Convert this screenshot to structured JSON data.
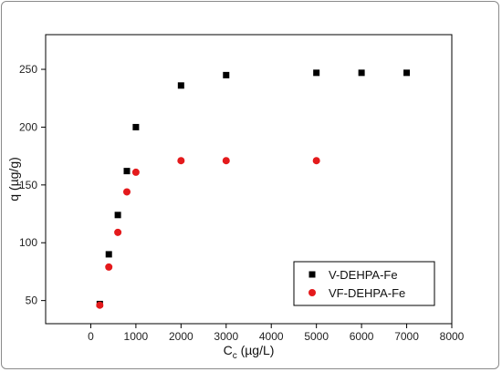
{
  "chart_data": {
    "type": "scatter",
    "title": "",
    "xlabel_main": "C",
    "xlabel_sub": "c",
    "xlabel_unit": " (µg/L)",
    "ylabel": "q (µg/g)",
    "xlim": [
      -1000,
      8000
    ],
    "ylim": [
      30,
      280
    ],
    "xticks": [
      0,
      1000,
      2000,
      3000,
      4000,
      5000,
      6000,
      7000,
      8000
    ],
    "xtick_labels": [
      "0",
      "1000",
      "2000",
      "3000",
      "4000",
      "5000",
      "6000",
      "7000",
      "8000"
    ],
    "yticks": [
      50,
      100,
      150,
      200,
      250
    ],
    "ytick_labels": [
      "50",
      "100",
      "150",
      "200",
      "250"
    ],
    "grid": false,
    "legend_position": "bottom-right",
    "series": [
      {
        "name": "V-DEHPA-Fe",
        "marker": "square",
        "color": "#000000",
        "points": [
          [
            200,
            47
          ],
          [
            400,
            90
          ],
          [
            600,
            124
          ],
          [
            800,
            162
          ],
          [
            1000,
            200
          ],
          [
            2000,
            236
          ],
          [
            3000,
            245
          ],
          [
            5000,
            247
          ],
          [
            6000,
            247
          ],
          [
            7000,
            247
          ]
        ]
      },
      {
        "name": "VF-DEHPA-Fe",
        "marker": "circle",
        "color": "#e41a1c",
        "points": [
          [
            200,
            46
          ],
          [
            400,
            79
          ],
          [
            600,
            109
          ],
          [
            800,
            144
          ],
          [
            1000,
            161
          ],
          [
            2000,
            171
          ],
          [
            3000,
            171
          ],
          [
            5000,
            171
          ]
        ]
      }
    ]
  }
}
